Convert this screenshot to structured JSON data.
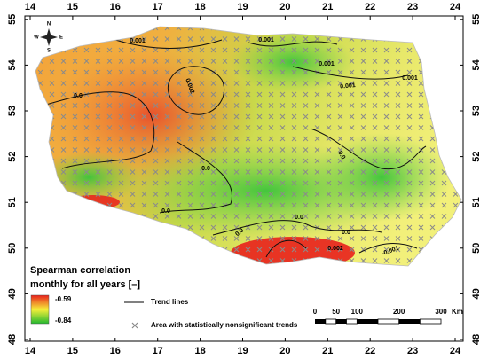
{
  "map": {
    "lon_ticks": [
      14,
      15,
      16,
      17,
      18,
      19,
      20,
      21,
      22,
      23,
      24
    ],
    "lat_ticks": [
      48,
      49,
      50,
      51,
      52,
      53,
      54,
      55
    ],
    "compass": [
      "N",
      "E",
      "S",
      "W"
    ],
    "contour_labels": [
      "0.001",
      "0.001",
      "0.001",
      "0.001",
      "0.001",
      "0.002",
      "0.0",
      "0.0",
      "0.0",
      "0.0",
      "0.0",
      "0.0",
      "0.0",
      "-0.001",
      "0.002"
    ],
    "legend": {
      "title": [
        "Spearman correlation",
        "monthly for all years [–]"
      ],
      "max_label": "-0.59",
      "min_label": "-0.84",
      "trend_lines": "Trend lines",
      "nonsignificant": "Area with statistically nonsignificant trends"
    },
    "scale": {
      "ticks": [
        0,
        50,
        100,
        200,
        300
      ],
      "unit": "Km"
    }
  }
}
